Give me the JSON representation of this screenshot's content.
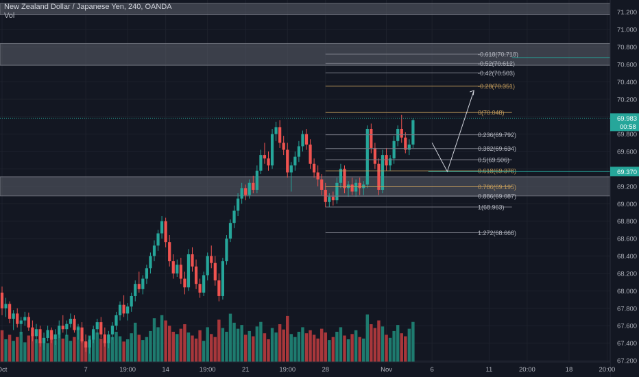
{
  "header": {
    "symbol_title": "New Zealand Dollar / Japanese Yen, 240, OANDA",
    "volume_label": "Vol"
  },
  "colors": {
    "background": "#131722",
    "up": "#26a69a",
    "down": "#ef5350",
    "up_volume": "#1e7b6f",
    "down_volume": "#a8373b",
    "zone_fill": "#5d606b",
    "fib_line": "#787b86",
    "fib_accent": "#c19a5b",
    "last_price": "#26a69a",
    "target": "#26a69a",
    "axis_text": "#b2b5be"
  },
  "chart_data": {
    "type": "candlestick",
    "title": "New Zealand Dollar / Japanese Yen, 240, OANDA",
    "price_axis": {
      "ylim": [
        67.2,
        71.3
      ],
      "ticks": [
        "71.200",
        "71.000",
        "70.800",
        "70.600",
        "70.400",
        "70.200",
        "70.000",
        "69.800",
        "69.600",
        "69.400",
        "69.200",
        "69.000",
        "68.800",
        "68.600",
        "68.400",
        "68.200",
        "68.000",
        "67.800",
        "67.600",
        "67.400",
        "67.200"
      ]
    },
    "time_axis": {
      "ticks": [
        {
          "label": "Oct",
          "bar": 0
        },
        {
          "label": "7",
          "bar": 22
        },
        {
          "label": "19:00",
          "bar": 33
        },
        {
          "label": "14",
          "bar": 43
        },
        {
          "label": "19:00",
          "bar": 54
        },
        {
          "label": "21",
          "bar": 64
        },
        {
          "label": "19:00",
          "bar": 75
        },
        {
          "label": "28",
          "bar": 85
        },
        {
          "label": "Nov",
          "bar": 101
        },
        {
          "label": "6",
          "bar": 113
        },
        {
          "label": "11",
          "bar": 128
        },
        {
          "label": "20:00",
          "bar": 138
        },
        {
          "label": "18",
          "bar": 149
        },
        {
          "label": "20:00",
          "bar": 159
        }
      ],
      "total_bars": 168
    },
    "last_price": {
      "value": 69.983,
      "label": "69.983",
      "countdown": "00:58"
    },
    "target_price": {
      "value": 69.37,
      "label": "69.370"
    },
    "zones": [
      {
        "top": 71.3,
        "bottom": 71.17
      },
      {
        "top": 70.84,
        "bottom": 70.59
      },
      {
        "top": 69.31,
        "bottom": 69.09
      }
    ],
    "fib_levels": [
      {
        "label": "-0.618(70.718)",
        "value": 70.718
      },
      {
        "label": "-0.52(70.612)",
        "value": 70.612
      },
      {
        "label": "-0.42(70.503)",
        "value": 70.503
      },
      {
        "label": "-0.28(70.351)",
        "value": 70.351
      },
      {
        "label": "0(70.048)",
        "value": 70.048
      },
      {
        "label": "0.236(69.792)",
        "value": 69.792
      },
      {
        "label": "0.382(69.634)",
        "value": 69.634
      },
      {
        "label": "0.5(69.506)",
        "value": 69.506
      },
      {
        "label": "0.618(69.378)",
        "value": 69.378
      },
      {
        "label": "0.786(69.195)",
        "value": 69.195
      },
      {
        "label": "0.886(69.087)",
        "value": 69.087
      },
      {
        "label": "1(68.963)",
        "value": 68.963
      },
      {
        "label": "1.272(68.668)",
        "value": 68.668
      }
    ],
    "fib_range": {
      "start_bar": 85,
      "end_bar": 134
    },
    "forecast_path": [
      {
        "bar": 113,
        "price": 69.7
      },
      {
        "bar": 117,
        "price": 69.37
      },
      {
        "bar": 124,
        "price": 70.3
      }
    ],
    "candles": [
      [
        67.98,
        68.05,
        67.72,
        67.8
      ],
      [
        67.8,
        67.92,
        67.7,
        67.85
      ],
      [
        67.85,
        67.88,
        67.63,
        67.68
      ],
      [
        67.68,
        67.78,
        67.55,
        67.74
      ],
      [
        67.74,
        67.8,
        67.58,
        67.62
      ],
      [
        67.62,
        67.7,
        67.5,
        67.66
      ],
      [
        67.66,
        67.76,
        67.6,
        67.7
      ],
      [
        67.7,
        67.75,
        67.54,
        67.58
      ],
      [
        67.58,
        67.66,
        67.42,
        67.48
      ],
      [
        67.48,
        67.62,
        67.4,
        67.56
      ],
      [
        67.56,
        67.6,
        67.36,
        67.4
      ],
      [
        67.4,
        67.52,
        67.32,
        67.46
      ],
      [
        67.46,
        67.6,
        67.42,
        67.55
      ],
      [
        67.55,
        67.58,
        67.4,
        67.44
      ],
      [
        67.44,
        67.56,
        67.38,
        67.5
      ],
      [
        67.5,
        67.66,
        67.46,
        67.6
      ],
      [
        67.6,
        67.72,
        67.52,
        67.56
      ],
      [
        67.56,
        67.66,
        67.48,
        67.62
      ],
      [
        67.62,
        67.74,
        67.58,
        67.68
      ],
      [
        67.68,
        67.72,
        67.52,
        67.55
      ],
      [
        67.55,
        67.62,
        67.44,
        67.58
      ],
      [
        67.58,
        67.64,
        67.4,
        67.42
      ],
      [
        67.42,
        67.5,
        67.3,
        67.35
      ],
      [
        67.35,
        67.48,
        67.28,
        67.44
      ],
      [
        67.44,
        67.6,
        67.4,
        67.56
      ],
      [
        67.56,
        67.68,
        67.5,
        67.64
      ],
      [
        67.64,
        67.7,
        67.46,
        67.5
      ],
      [
        67.5,
        67.58,
        67.36,
        67.4
      ],
      [
        67.4,
        67.54,
        67.34,
        67.5
      ],
      [
        67.5,
        67.64,
        67.44,
        67.6
      ],
      [
        67.6,
        67.76,
        67.55,
        67.72
      ],
      [
        67.72,
        67.88,
        67.66,
        67.84
      ],
      [
        67.84,
        67.95,
        67.7,
        67.74
      ],
      [
        67.74,
        67.86,
        67.66,
        67.82
      ],
      [
        67.82,
        67.98,
        67.76,
        67.94
      ],
      [
        67.94,
        68.12,
        67.88,
        68.08
      ],
      [
        68.08,
        68.22,
        67.98,
        68.02
      ],
      [
        68.02,
        68.18,
        67.96,
        68.14
      ],
      [
        68.14,
        68.3,
        68.08,
        68.26
      ],
      [
        68.26,
        68.44,
        68.2,
        68.4
      ],
      [
        68.4,
        68.58,
        68.34,
        68.52
      ],
      [
        68.52,
        68.7,
        68.46,
        68.66
      ],
      [
        68.66,
        68.86,
        68.6,
        68.8
      ],
      [
        68.8,
        68.84,
        68.5,
        68.56
      ],
      [
        68.56,
        68.64,
        68.28,
        68.34
      ],
      [
        68.34,
        68.42,
        68.14,
        68.2
      ],
      [
        68.2,
        68.36,
        68.16,
        68.3
      ],
      [
        68.3,
        68.38,
        68.08,
        68.14
      ],
      [
        68.14,
        68.22,
        67.96,
        68.04
      ],
      [
        68.04,
        68.48,
        68.0,
        68.42
      ],
      [
        68.42,
        68.5,
        68.22,
        68.28
      ],
      [
        68.28,
        68.36,
        68.02,
        68.08
      ],
      [
        68.08,
        68.14,
        67.92,
        67.98
      ],
      [
        67.98,
        68.22,
        67.94,
        68.18
      ],
      [
        68.18,
        68.44,
        68.12,
        68.4
      ],
      [
        68.4,
        68.52,
        68.26,
        68.32
      ],
      [
        68.32,
        68.4,
        68.06,
        68.12
      ],
      [
        68.12,
        68.2,
        67.88,
        67.94
      ],
      [
        67.94,
        68.38,
        67.9,
        68.34
      ],
      [
        68.34,
        68.64,
        68.3,
        68.6
      ],
      [
        68.6,
        68.82,
        68.56,
        68.78
      ],
      [
        68.78,
        68.98,
        68.72,
        68.92
      ],
      [
        68.92,
        69.12,
        68.86,
        69.06
      ],
      [
        69.06,
        69.24,
        69.0,
        69.18
      ],
      [
        69.18,
        69.22,
        69.04,
        69.1
      ],
      [
        69.1,
        69.28,
        69.06,
        69.24
      ],
      [
        69.24,
        69.32,
        69.12,
        69.16
      ],
      [
        69.16,
        69.44,
        69.12,
        69.38
      ],
      [
        69.38,
        69.62,
        69.34,
        69.56
      ],
      [
        69.56,
        69.7,
        69.46,
        69.52
      ],
      [
        69.52,
        69.6,
        69.38,
        69.44
      ],
      [
        69.44,
        69.86,
        69.4,
        69.8
      ],
      [
        69.8,
        69.94,
        69.72,
        69.88
      ],
      [
        69.88,
        69.96,
        69.64,
        69.7
      ],
      [
        69.7,
        69.78,
        69.56,
        69.62
      ],
      [
        69.62,
        69.7,
        69.3,
        69.36
      ],
      [
        69.36,
        69.48,
        69.14,
        69.44
      ],
      [
        69.44,
        69.6,
        69.38,
        69.54
      ],
      [
        69.54,
        69.72,
        69.48,
        69.66
      ],
      [
        69.66,
        69.84,
        69.6,
        69.8
      ],
      [
        69.8,
        69.86,
        69.62,
        69.68
      ],
      [
        69.68,
        69.74,
        69.4,
        69.46
      ],
      [
        69.46,
        69.52,
        69.3,
        69.36
      ],
      [
        69.36,
        69.44,
        69.2,
        69.28
      ],
      [
        69.28,
        69.34,
        69.1,
        69.16
      ],
      [
        69.16,
        69.24,
        68.96,
        69.02
      ],
      [
        69.02,
        69.12,
        68.96,
        69.08
      ],
      [
        69.08,
        69.14,
        68.98,
        69.04
      ],
      [
        69.04,
        69.3,
        69.0,
        69.24
      ],
      [
        69.24,
        69.46,
        69.18,
        69.4
      ],
      [
        69.4,
        69.44,
        69.12,
        69.18
      ],
      [
        69.18,
        69.26,
        69.08,
        69.22
      ],
      [
        69.22,
        69.3,
        69.1,
        69.14
      ],
      [
        69.14,
        69.28,
        69.08,
        69.24
      ],
      [
        69.24,
        69.3,
        69.1,
        69.18
      ],
      [
        69.18,
        69.26,
        69.1,
        69.22
      ],
      [
        69.22,
        69.9,
        69.18,
        69.86
      ],
      [
        69.86,
        69.92,
        69.58,
        69.64
      ],
      [
        69.64,
        69.7,
        69.4,
        69.46
      ],
      [
        69.46,
        69.52,
        69.1,
        69.16
      ],
      [
        69.16,
        69.62,
        69.12,
        69.56
      ],
      [
        69.56,
        69.64,
        69.38,
        69.44
      ],
      [
        69.44,
        69.56,
        69.38,
        69.52
      ],
      [
        69.52,
        69.78,
        69.46,
        69.72
      ],
      [
        69.72,
        69.9,
        69.66,
        69.86
      ],
      [
        69.86,
        70.02,
        69.7,
        69.76
      ],
      [
        69.76,
        69.82,
        69.58,
        69.62
      ],
      [
        69.62,
        69.74,
        69.56,
        69.68
      ],
      [
        69.68,
        69.98,
        69.64,
        69.96
      ]
    ],
    "volume": [
      0.42,
      0.3,
      0.36,
      0.28,
      0.33,
      0.4,
      0.26,
      0.35,
      0.38,
      0.3,
      0.27,
      0.32,
      0.25,
      0.34,
      0.29,
      0.37,
      0.31,
      0.36,
      0.28,
      0.33,
      0.47,
      0.3,
      0.26,
      0.35,
      0.42,
      0.39,
      0.31,
      0.28,
      0.36,
      0.33,
      0.4,
      0.34,
      0.27,
      0.3,
      0.38,
      0.52,
      0.36,
      0.29,
      0.33,
      0.41,
      0.58,
      0.46,
      0.62,
      0.55,
      0.48,
      0.4,
      0.37,
      0.44,
      0.5,
      0.39,
      0.35,
      0.31,
      0.42,
      0.28,
      0.46,
      0.37,
      0.33,
      0.56,
      0.45,
      0.4,
      0.64,
      0.52,
      0.44,
      0.49,
      0.36,
      0.41,
      0.34,
      0.47,
      0.53,
      0.38,
      0.3,
      0.45,
      0.39,
      0.5,
      0.43,
      0.61,
      0.37,
      0.33,
      0.4,
      0.46,
      0.38,
      0.42,
      0.36,
      0.31,
      0.44,
      0.39,
      0.29,
      0.33,
      0.4,
      0.46,
      0.35,
      0.3,
      0.37,
      0.42,
      0.33,
      0.31,
      0.63,
      0.5,
      0.45,
      0.55,
      0.47,
      0.36,
      0.32,
      0.41,
      0.49,
      0.38,
      0.34,
      0.44,
      0.53
    ]
  }
}
